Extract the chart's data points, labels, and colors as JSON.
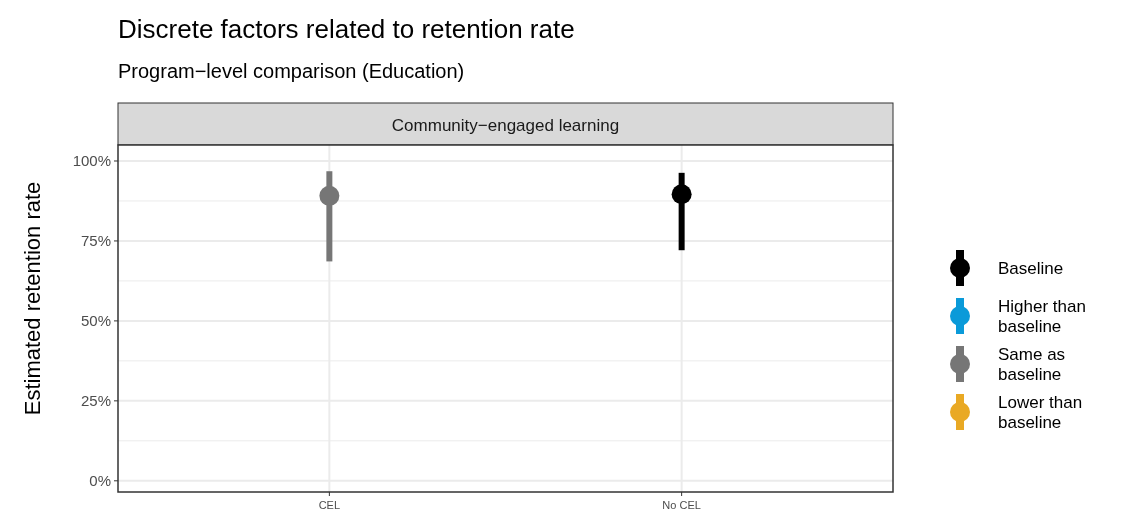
{
  "chart_data": {
    "type": "scatter",
    "title": "Discrete factors related to retention rate",
    "subtitle": "Program−level comparison (Education)",
    "ylabel": "Estimated retention rate",
    "annotations": [
      "Community−engaged learning"
    ],
    "categories": [
      "CEL",
      "No CEL"
    ],
    "series": [
      {
        "name": "Baseline",
        "color": "#000000",
        "values": [
          null,
          89.6
        ],
        "errors": [
          null,
          [
            72.1,
            96.3
          ]
        ]
      },
      {
        "name": "Higher than baseline",
        "color": "#0a9ad9",
        "values": [
          null,
          null
        ]
      },
      {
        "name": "Same as baseline",
        "color": "#767676",
        "values": [
          89.1,
          null
        ],
        "errors": [
          [
            68.6,
            96.8
          ],
          null
        ]
      },
      {
        "name": "Lower than baseline",
        "color": "#e9a924",
        "values": [
          null,
          null
        ]
      }
    ],
    "ylim": [
      -3.5,
      105
    ],
    "yticks": [
      {
        "value": 0,
        "label": "0%"
      },
      {
        "value": 25,
        "label": "25%"
      },
      {
        "value": 50,
        "label": "50%"
      },
      {
        "value": 75,
        "label": "75%"
      },
      {
        "value": 100,
        "label": "100%"
      }
    ],
    "grid": true,
    "legend": "right",
    "marker": "circle"
  }
}
